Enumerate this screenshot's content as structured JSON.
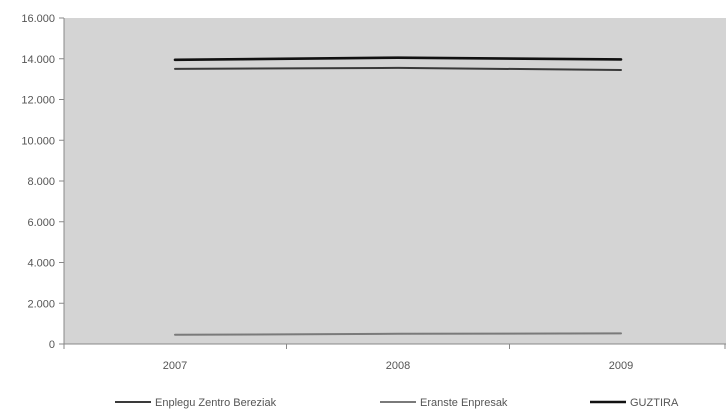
{
  "chart_data": {
    "type": "line",
    "title": "",
    "xlabel": "",
    "ylabel": "",
    "categories": [
      "2007",
      "2008",
      "2009"
    ],
    "ylim": [
      0,
      16000
    ],
    "yticks": [
      0,
      2000,
      4000,
      6000,
      8000,
      10000,
      12000,
      14000,
      16000
    ],
    "ytick_labels": [
      "0",
      "2.000",
      "4.000",
      "6.000",
      "8.000",
      "10.000",
      "12.000",
      "14.000",
      "16.000"
    ],
    "grid": false,
    "legend_position": "bottom",
    "series": [
      {
        "name": "Enplegu Zentro Bereziak",
        "values": [
          13500,
          13550,
          13450
        ],
        "color": "#3a3a3a"
      },
      {
        "name": "Eranste Enpresak",
        "values": [
          450,
          500,
          520
        ],
        "color": "#7a7a7a"
      },
      {
        "name": "GUZTIRA",
        "values": [
          13950,
          14050,
          13970
        ],
        "color": "#111111"
      }
    ],
    "colors": {
      "plot_background": "#d4d4d4",
      "axis": "#888888",
      "text": "#555555"
    }
  }
}
